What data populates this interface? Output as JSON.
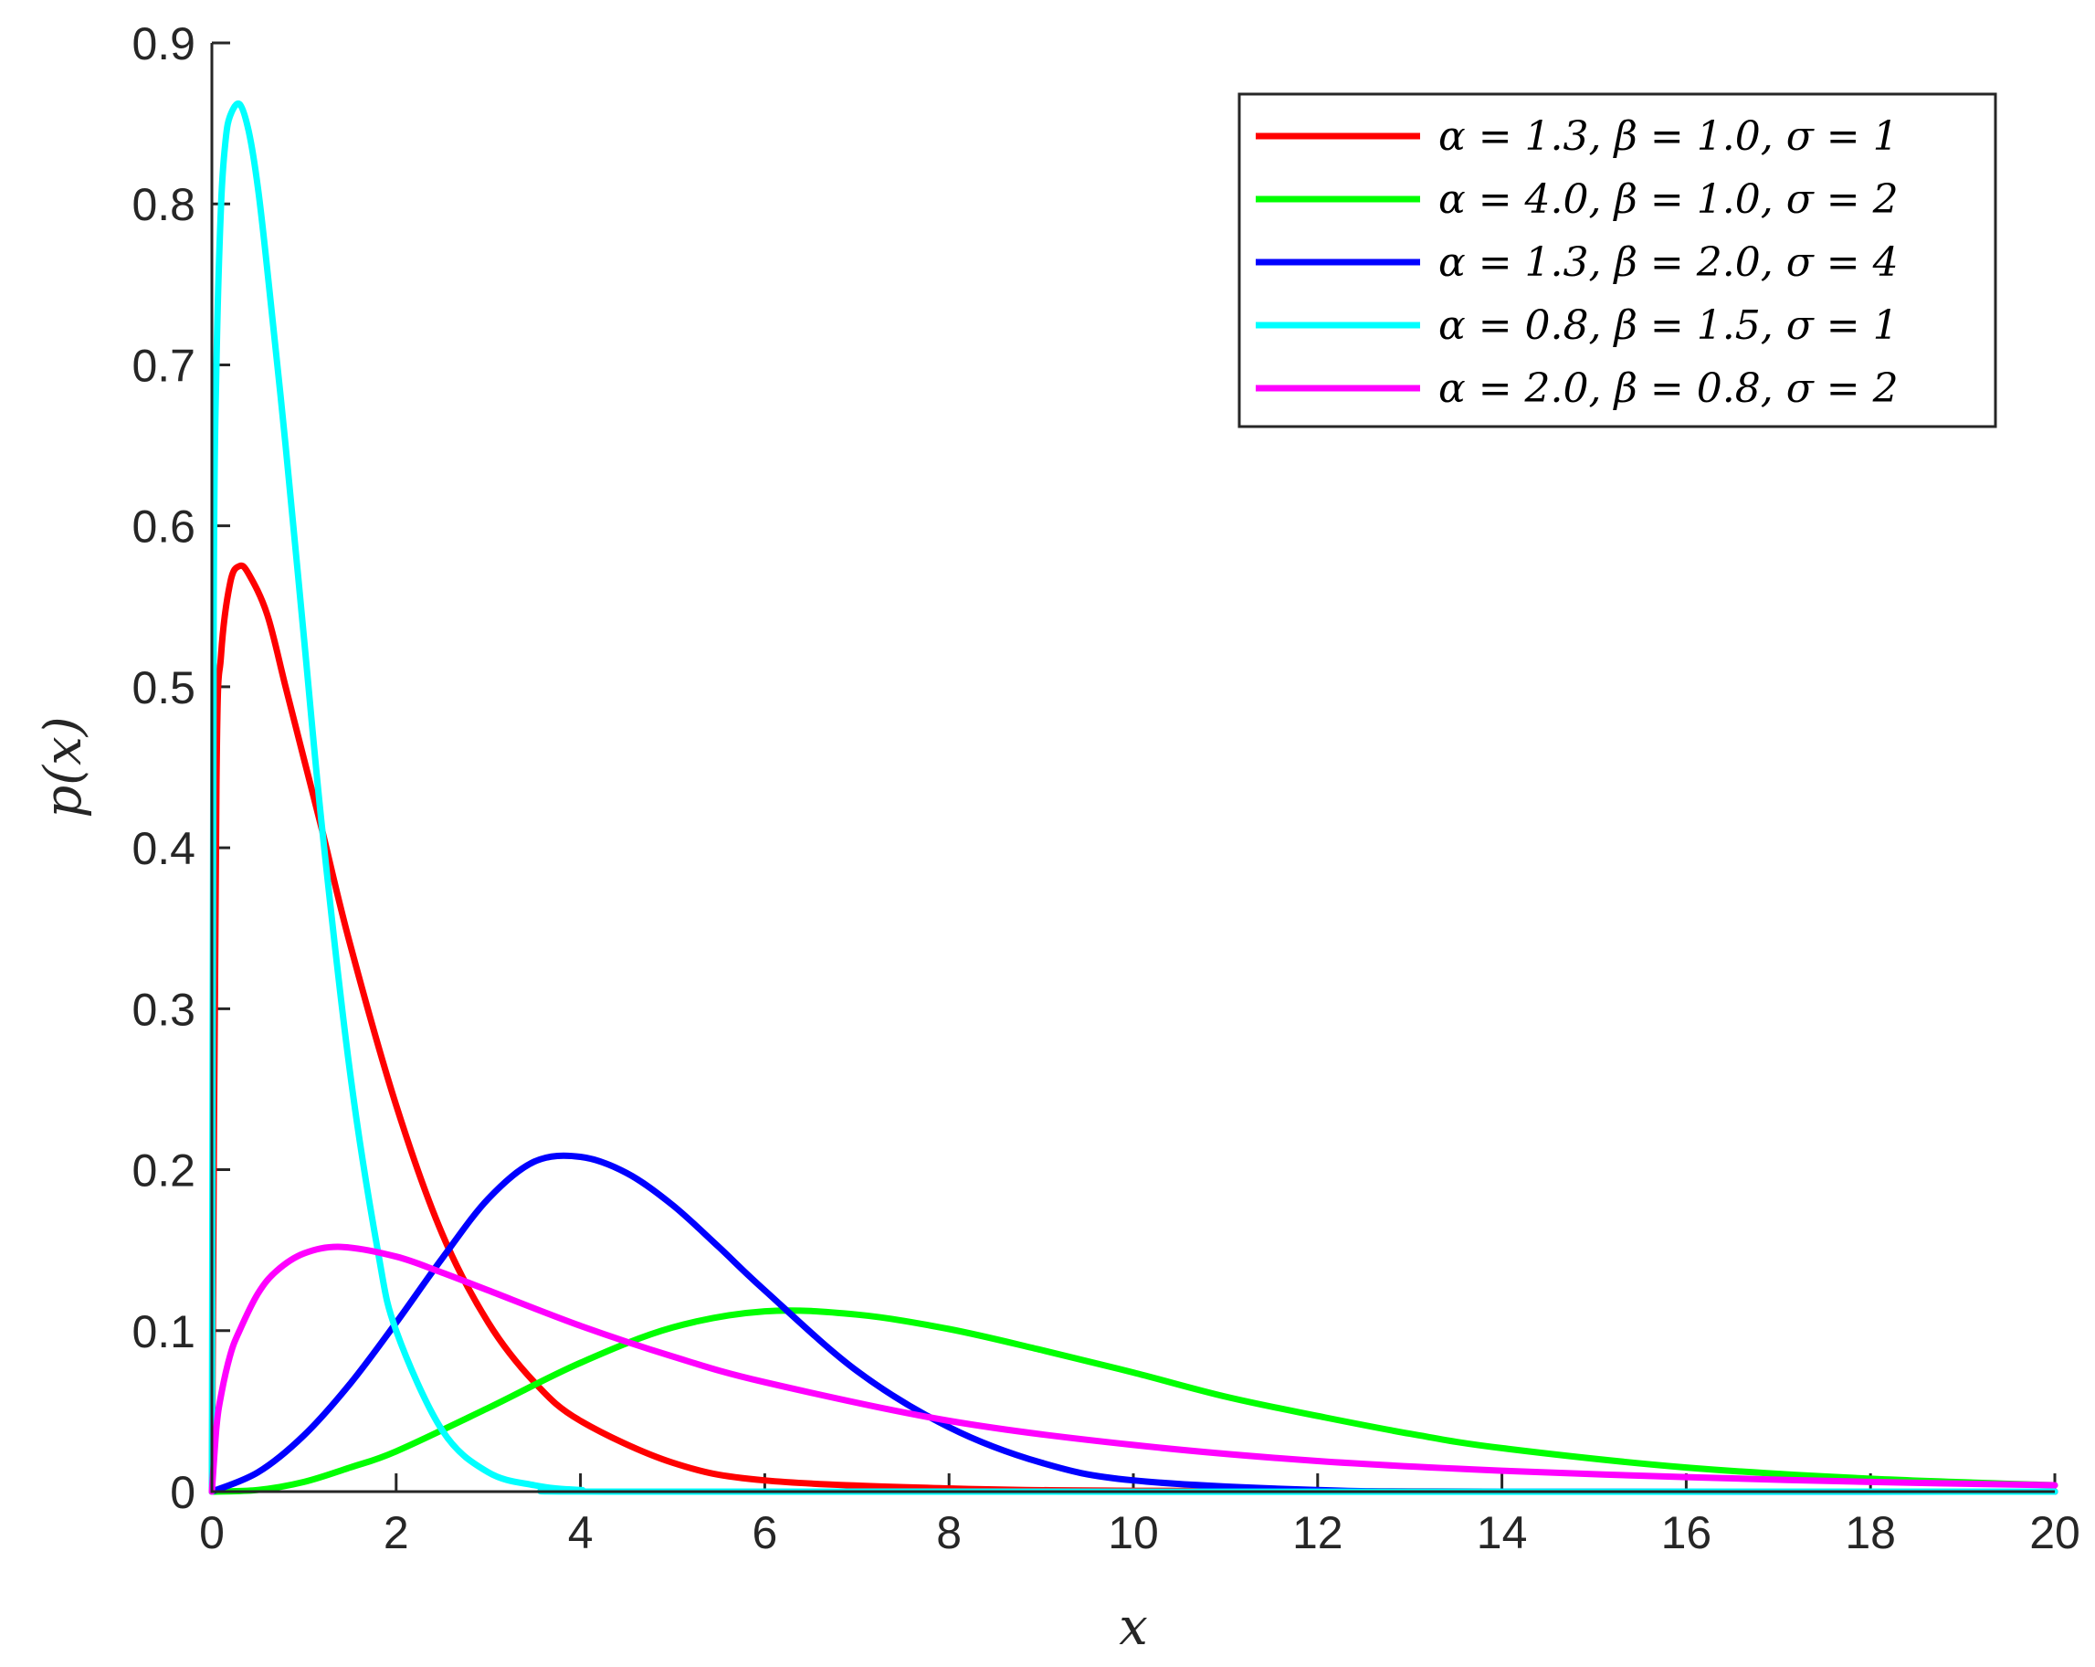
{
  "chart_data": {
    "type": "line",
    "title": "",
    "xlabel": "x",
    "ylabel": "p(x)",
    "xlim": [
      0,
      20
    ],
    "ylim": [
      0,
      0.9
    ],
    "xticks": [
      0,
      2,
      4,
      6,
      8,
      10,
      12,
      14,
      16,
      18,
      20
    ],
    "yticks": [
      0,
      0.1,
      0.2,
      0.3,
      0.4,
      0.5,
      0.6,
      0.7,
      0.8,
      0.9
    ],
    "xtick_labels": [
      "0",
      "2",
      "4",
      "6",
      "8",
      "10",
      "12",
      "14",
      "16",
      "18",
      "20"
    ],
    "ytick_labels": [
      "0",
      "0.1",
      "0.2",
      "0.3",
      "0.4",
      "0.5",
      "0.6",
      "0.7",
      "0.8",
      "0.9"
    ],
    "grid": false,
    "legend_position": "top-right",
    "series": [
      {
        "name": "α = 1.3,  β = 1.0,  σ = 1",
        "color": "#ff0000",
        "x": [
          0,
          0.05,
          0.1,
          0.2,
          0.3,
          0.4,
          0.6,
          0.8,
          1.0,
          1.2,
          1.5,
          2.0,
          2.5,
          3.0,
          3.5,
          4.0,
          5.0,
          6.0,
          8.0,
          10.0,
          14.0,
          20.0
        ],
        "y": [
          0,
          0.44,
          0.52,
          0.565,
          0.575,
          0.57,
          0.545,
          0.5,
          0.455,
          0.41,
          0.34,
          0.24,
          0.16,
          0.105,
          0.068,
          0.044,
          0.018,
          0.007,
          0.002,
          0.0005,
          0,
          0
        ]
      },
      {
        "name": "α = 4.0,  β = 1.0,  σ = 2",
        "color": "#00ff00",
        "x": [
          0,
          0.5,
          1.0,
          1.5,
          2.0,
          3.0,
          4.0,
          5.0,
          6.0,
          7.0,
          8.0,
          9.0,
          10.0,
          11.0,
          12.0,
          13.0,
          14.0,
          16.0,
          18.0,
          20.0
        ],
        "y": [
          0,
          0.001,
          0.006,
          0.015,
          0.025,
          0.052,
          0.08,
          0.102,
          0.112,
          0.11,
          0.101,
          0.088,
          0.074,
          0.059,
          0.047,
          0.036,
          0.027,
          0.015,
          0.008,
          0.004
        ]
      },
      {
        "name": "α = 1.3,  β = 2.0,  σ = 4",
        "color": "#0000ff",
        "x": [
          0,
          0.5,
          1.0,
          1.5,
          2.0,
          2.5,
          3.0,
          3.5,
          4.0,
          4.5,
          5.0,
          5.5,
          6.0,
          7.0,
          8.0,
          9.0,
          10.0,
          12.0,
          14.0,
          20.0
        ],
        "y": [
          0,
          0.012,
          0.035,
          0.067,
          0.105,
          0.145,
          0.182,
          0.205,
          0.208,
          0.198,
          0.178,
          0.152,
          0.125,
          0.075,
          0.04,
          0.018,
          0.007,
          0.001,
          0,
          0
        ]
      },
      {
        "name": "α = 0.8,  β = 1.5,  σ = 1",
        "color": "#00ffff",
        "x": [
          0,
          0.02,
          0.05,
          0.1,
          0.15,
          0.2,
          0.3,
          0.4,
          0.5,
          0.6,
          0.8,
          1.0,
          1.2,
          1.5,
          1.8,
          2.0,
          2.5,
          3.0,
          3.5,
          4.0,
          5.0,
          20.0
        ],
        "y": [
          0,
          0.55,
          0.7,
          0.8,
          0.84,
          0.855,
          0.862,
          0.845,
          0.81,
          0.76,
          0.65,
          0.53,
          0.41,
          0.26,
          0.15,
          0.1,
          0.038,
          0.012,
          0.004,
          0.001,
          0,
          0
        ]
      },
      {
        "name": "α = 2.0,  β = 0.8,  σ = 2",
        "color": "#ff00ff",
        "x": [
          0,
          0.05,
          0.1,
          0.2,
          0.3,
          0.5,
          0.7,
          1.0,
          1.4,
          2.0,
          2.5,
          3.0,
          4.0,
          5.0,
          6.0,
          8.0,
          10.0,
          12.0,
          14.0,
          16.0,
          18.0,
          20.0
        ],
        "y": [
          0,
          0.04,
          0.06,
          0.085,
          0.1,
          0.123,
          0.137,
          0.148,
          0.152,
          0.146,
          0.136,
          0.125,
          0.103,
          0.084,
          0.068,
          0.044,
          0.029,
          0.019,
          0.013,
          0.009,
          0.006,
          0.004
        ]
      }
    ]
  }
}
